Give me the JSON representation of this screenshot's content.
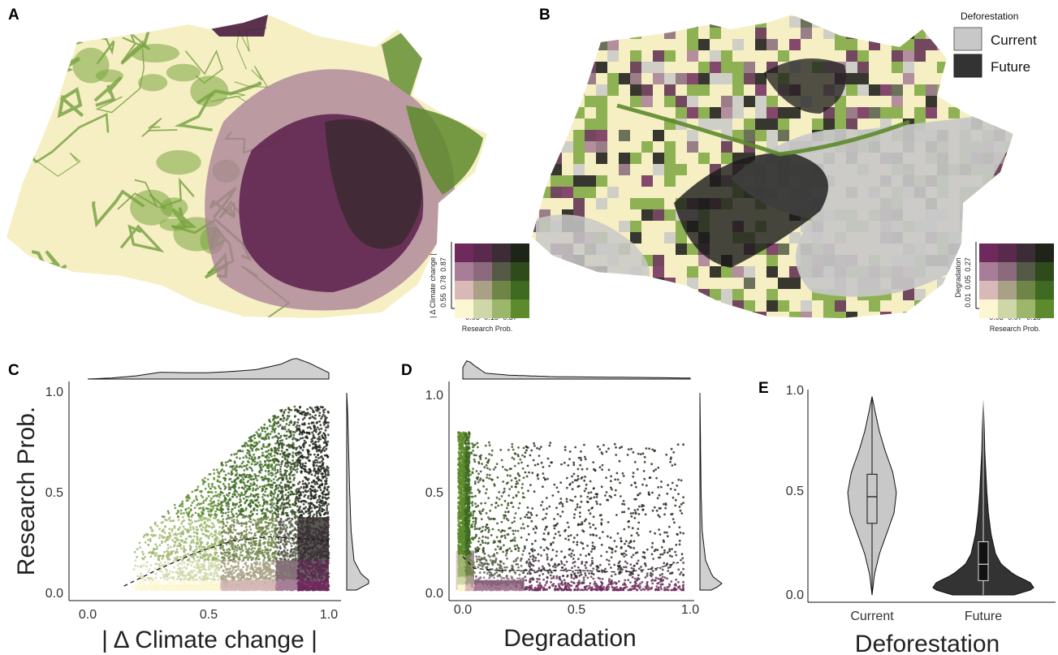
{
  "panels": {
    "a": "A",
    "b": "B",
    "c": "C",
    "d": "D",
    "e": "E"
  },
  "colors": {
    "bivariate": [
      [
        "#fdf6d2",
        "#cfd7a8",
        "#9cb76b",
        "#5d8a2c"
      ],
      [
        "#d9b8b8",
        "#a8a185",
        "#6f8447",
        "#3f6a21"
      ],
      [
        "#a77d97",
        "#8a6a7c",
        "#545a46",
        "#2f4a1b"
      ],
      [
        "#6e2a5c",
        "#5a2a4d",
        "#3b2c36",
        "#1e2418"
      ]
    ],
    "deforest_current": "#c8c8c8",
    "deforest_future": "#333333"
  },
  "legend_a": {
    "y_title": "| Δ Climate change |",
    "y_ticks": [
      "0.55",
      "0.78",
      "0.87"
    ],
    "x_ticks": [
      "0.05",
      "0.15",
      "0.37"
    ],
    "x_title": "Research Prob."
  },
  "legend_b": {
    "y_title": "Degradation",
    "y_ticks": [
      "0.01",
      "0.05",
      "0.27"
    ],
    "x_ticks": [
      "0.03",
      "0.07",
      "0.18"
    ],
    "x_title": "Research Prob."
  },
  "deforestation_legend": {
    "title": "Deforestation",
    "items": [
      {
        "label": "Current",
        "color": "#c8c8c8"
      },
      {
        "label": "Future",
        "color": "#333333"
      }
    ]
  },
  "chart_data": [
    {
      "type": "scatter",
      "panel": "C",
      "xlabel": "| Δ Climate change |",
      "ylabel": "Research Prob.",
      "xlim": [
        0.0,
        1.0
      ],
      "ylim": [
        0.0,
        1.0
      ],
      "xticks": [
        "0.0",
        "0.5",
        "1.0"
      ],
      "yticks": [
        "0.0",
        "0.5",
        "1.0"
      ],
      "x_range_points": [
        0.15,
        1.0
      ],
      "trend": {
        "x": [
          0.15,
          0.3,
          0.45,
          0.6,
          0.75,
          0.9,
          1.0
        ],
        "y": [
          0.02,
          0.11,
          0.19,
          0.25,
          0.27,
          0.26,
          0.25
        ]
      },
      "x_density": {
        "x": [
          0.0,
          0.1,
          0.2,
          0.3,
          0.4,
          0.5,
          0.6,
          0.7,
          0.8,
          0.86,
          0.92,
          1.0
        ],
        "d": [
          0.0,
          0.05,
          0.15,
          0.32,
          0.3,
          0.3,
          0.36,
          0.45,
          0.7,
          1.0,
          0.75,
          0.3
        ]
      },
      "y_density": {
        "y": [
          0.0,
          0.04,
          0.08,
          0.15,
          0.3,
          0.5,
          0.7,
          0.9,
          1.0
        ],
        "d": [
          0.4,
          1.0,
          0.6,
          0.3,
          0.18,
          0.12,
          0.08,
          0.04,
          0.0
        ]
      }
    },
    {
      "type": "scatter",
      "panel": "D",
      "xlabel": "Degradation",
      "ylabel": "",
      "xlim": [
        0.0,
        1.0
      ],
      "ylim": [
        0.0,
        1.0
      ],
      "xticks": [
        "0.0",
        "0.5",
        "1.0"
      ],
      "yticks": [
        "0.0",
        "0.5",
        "1.0"
      ],
      "trend": {
        "x": [
          0.0,
          0.05,
          0.15,
          0.3,
          0.5,
          0.7,
          0.85,
          0.95
        ],
        "y": [
          0.17,
          0.11,
          0.1,
          0.1,
          0.1,
          0.09,
          0.11,
          0.14
        ]
      },
      "x_density": {
        "x": [
          0.0,
          0.02,
          0.05,
          0.1,
          0.2,
          0.4,
          0.6,
          0.8,
          1.0
        ],
        "d": [
          0.6,
          1.0,
          0.7,
          0.3,
          0.2,
          0.12,
          0.1,
          0.08,
          0.05
        ]
      },
      "y_density": {
        "y": [
          0.0,
          0.03,
          0.07,
          0.15,
          0.3,
          0.5,
          0.7,
          0.9,
          1.0
        ],
        "d": [
          0.5,
          1.0,
          0.55,
          0.25,
          0.1,
          0.05,
          0.03,
          0.01,
          0.0
        ]
      }
    },
    {
      "type": "violin",
      "panel": "E",
      "xlabel": "Deforestation",
      "ylabel": "",
      "ylim": [
        0.0,
        1.0
      ],
      "yticks": [
        "0.0",
        "0.5",
        "1.0"
      ],
      "categories": [
        "Current",
        "Future"
      ],
      "series": [
        {
          "name": "Current",
          "color": "#c8c8c8",
          "min": 0.0,
          "q1": 0.35,
          "median": 0.48,
          "q3": 0.59,
          "max": 0.97,
          "profile": {
            "y": [
              0.0,
              0.1,
              0.2,
              0.3,
              0.4,
              0.5,
              0.6,
              0.7,
              0.8,
              0.9,
              0.97
            ],
            "w": [
              0.0,
              0.1,
              0.3,
              0.6,
              0.9,
              1.0,
              0.85,
              0.55,
              0.3,
              0.12,
              0.0
            ]
          }
        },
        {
          "name": "Future",
          "color": "#333333",
          "min": 0.0,
          "q1": 0.07,
          "median": 0.15,
          "q3": 0.26,
          "max": 0.95,
          "profile": {
            "y": [
              0.0,
              0.03,
              0.06,
              0.1,
              0.15,
              0.2,
              0.3,
              0.4,
              0.5,
              0.6,
              0.7,
              0.8,
              0.95
            ],
            "w": [
              0.6,
              1.0,
              0.92,
              0.6,
              0.35,
              0.24,
              0.15,
              0.1,
              0.07,
              0.05,
              0.03,
              0.02,
              0.0
            ]
          }
        }
      ]
    }
  ]
}
